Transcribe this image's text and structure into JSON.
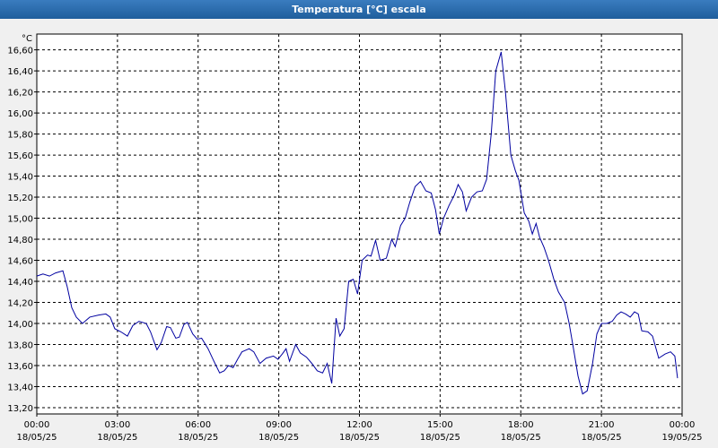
{
  "chart_data": {
    "type": "line",
    "title": "Temperatura [°C] escala",
    "ylabel": "°C",
    "x": [
      0,
      0.23,
      0.47,
      0.7,
      0.97,
      1.13,
      1.3,
      1.47,
      1.7,
      1.97,
      2.3,
      2.57,
      2.73,
      2.9,
      3.13,
      3.37,
      3.57,
      3.8,
      4.07,
      4.23,
      4.47,
      4.63,
      4.83,
      4.97,
      5.17,
      5.3,
      5.47,
      5.6,
      5.8,
      5.97,
      6.13,
      6.37,
      6.57,
      6.8,
      6.97,
      7.13,
      7.3,
      7.47,
      7.63,
      7.9,
      8.07,
      8.3,
      8.53,
      8.8,
      8.97,
      9.13,
      9.27,
      9.4,
      9.63,
      9.8,
      10.03,
      10.23,
      10.43,
      10.63,
      10.8,
      10.97,
      11.13,
      11.27,
      11.43,
      11.6,
      11.77,
      11.93,
      12.1,
      12.3,
      12.43,
      12.6,
      12.77,
      13,
      13.2,
      13.33,
      13.53,
      13.7,
      13.87,
      14.07,
      14.27,
      14.47,
      14.67,
      14.83,
      14.97,
      15.13,
      15.33,
      15.53,
      15.67,
      15.83,
      15.97,
      16.17,
      16.37,
      16.57,
      16.73,
      16.9,
      17.07,
      17.27,
      17.43,
      17.63,
      17.8,
      17.93,
      18.13,
      18.3,
      18.43,
      18.57,
      18.7,
      18.87,
      19.03,
      19.23,
      19.4,
      19.63,
      19.8,
      20,
      20.13,
      20.3,
      20.47,
      20.67,
      20.83,
      21,
      21.2,
      21.4,
      21.57,
      21.73,
      21.9,
      22.07,
      22.23,
      22.37,
      22.5,
      22.73,
      22.9,
      23.13,
      23.37,
      23.57,
      23.73,
      23.83
    ],
    "series": [
      {
        "name": "Temperatura",
        "color": "#0000a0",
        "values": [
          14.45,
          14.47,
          14.45,
          14.48,
          14.5,
          14.35,
          14.15,
          14.06,
          14,
          14.06,
          14.08,
          14.09,
          14.06,
          13.95,
          13.92,
          13.88,
          13.98,
          14.02,
          14,
          13.92,
          13.75,
          13.82,
          13.97,
          13.96,
          13.86,
          13.87,
          13.99,
          14.01,
          13.9,
          13.85,
          13.86,
          13.76,
          13.65,
          13.53,
          13.55,
          13.6,
          13.58,
          13.66,
          13.73,
          13.76,
          13.73,
          13.62,
          13.67,
          13.69,
          13.66,
          13.71,
          13.76,
          13.64,
          13.8,
          13.72,
          13.68,
          13.62,
          13.55,
          13.53,
          13.62,
          13.43,
          14.05,
          13.88,
          13.95,
          14.4,
          14.42,
          14.28,
          14.6,
          14.65,
          14.64,
          14.79,
          14.6,
          14.62,
          14.8,
          14.73,
          14.93,
          15,
          15.15,
          15.3,
          15.35,
          15.26,
          15.24,
          15.08,
          14.85,
          15,
          15.12,
          15.22,
          15.32,
          15.25,
          15.07,
          15.2,
          15.25,
          15.26,
          15.37,
          15.8,
          16.4,
          16.58,
          16.2,
          15.6,
          15.45,
          15.36,
          15.05,
          14.97,
          14.85,
          14.95,
          14.82,
          14.72,
          14.6,
          14.42,
          14.3,
          14.2,
          14,
          13.7,
          13.5,
          13.33,
          13.36,
          13.62,
          13.9,
          14,
          14,
          14.02,
          14.08,
          14.11,
          14.09,
          14.06,
          14.11,
          14.09,
          13.93,
          13.92,
          13.88,
          13.67,
          13.71,
          13.73,
          13.69,
          13.48
        ]
      }
    ],
    "xlim": [
      0,
      24
    ],
    "xticks": [
      {
        "value": 0,
        "label": "00:00"
      },
      {
        "value": 3,
        "label": "03:00"
      },
      {
        "value": 6,
        "label": "06:00"
      },
      {
        "value": 9,
        "label": "09:00"
      },
      {
        "value": 12,
        "label": "12:00"
      },
      {
        "value": 15,
        "label": "15:00"
      },
      {
        "value": 18,
        "label": "18:00"
      },
      {
        "value": 21,
        "label": "21:00"
      },
      {
        "value": 24,
        "label": "00:00"
      }
    ],
    "xtick_dates": [
      "18/05/25",
      "18/05/25",
      "18/05/25",
      "18/05/25",
      "18/05/25",
      "18/05/25",
      "18/05/25",
      "18/05/25",
      "19/05/25"
    ],
    "ylim": [
      13.14,
      16.75
    ],
    "yticks": [
      {
        "value": 13.2,
        "label": "13,20"
      },
      {
        "value": 13.4,
        "label": "13,40"
      },
      {
        "value": 13.6,
        "label": "13,60"
      },
      {
        "value": 13.8,
        "label": "13,80"
      },
      {
        "value": 14,
        "label": "14,00"
      },
      {
        "value": 14.2,
        "label": "14,20"
      },
      {
        "value": 14.4,
        "label": "14,40"
      },
      {
        "value": 14.6,
        "label": "14,60"
      },
      {
        "value": 14.8,
        "label": "14,80"
      },
      {
        "value": 15,
        "label": "15,00"
      },
      {
        "value": 15.2,
        "label": "15,20"
      },
      {
        "value": 15.4,
        "label": "15,40"
      },
      {
        "value": 15.6,
        "label": "15,60"
      },
      {
        "value": 15.8,
        "label": "15,80"
      },
      {
        "value": 16,
        "label": "16,00"
      },
      {
        "value": 16.2,
        "label": "16,20"
      },
      {
        "value": 16.4,
        "label": "16,40"
      },
      {
        "value": 16.6,
        "label": "16,60"
      }
    ],
    "grid": true
  }
}
